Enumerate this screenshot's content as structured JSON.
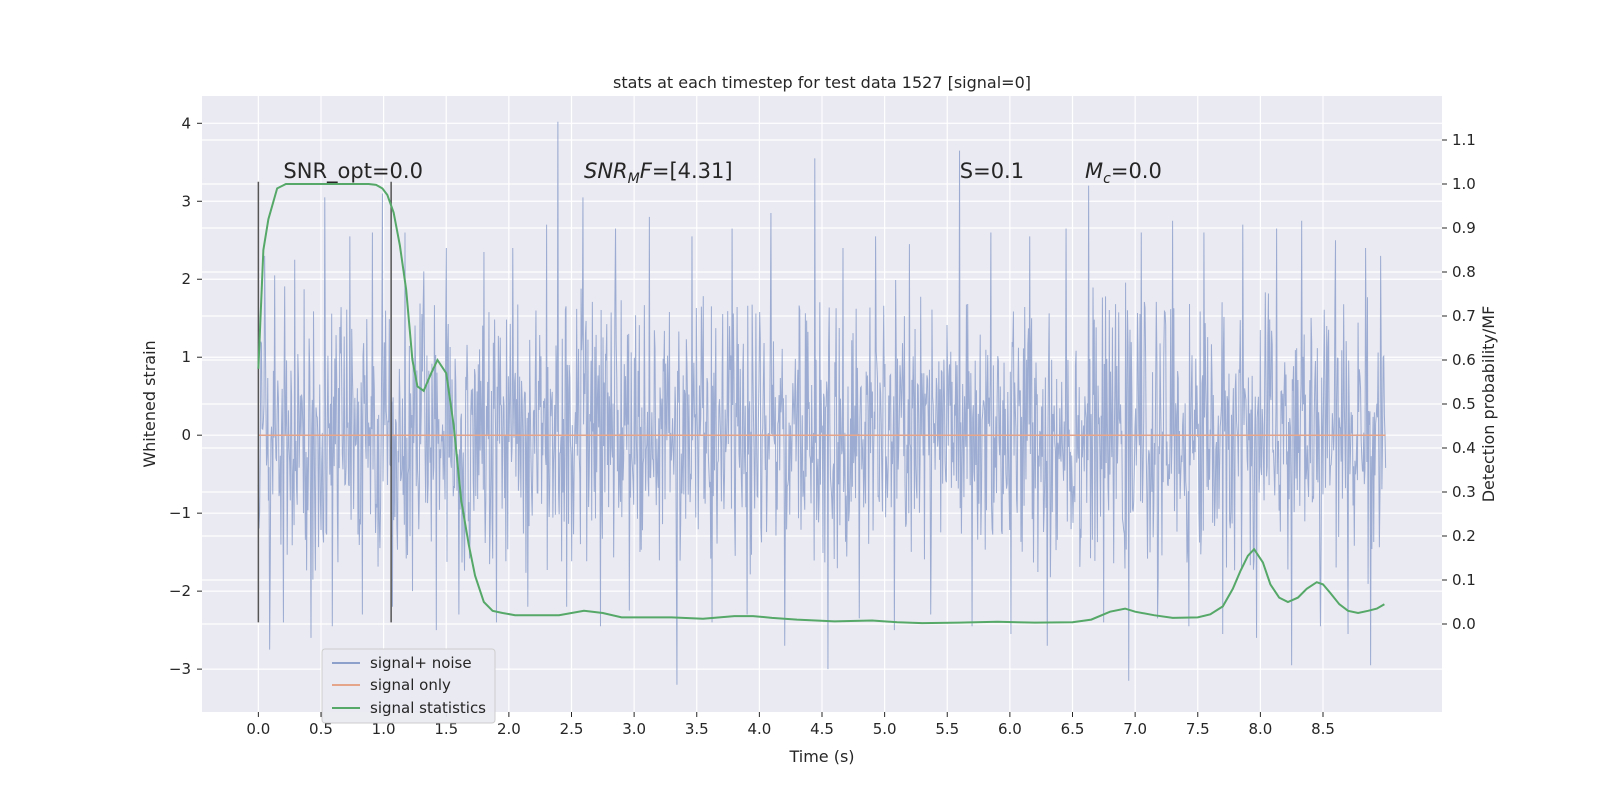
{
  "chart_data": {
    "type": "line",
    "title": "stats at each timestep for test data 1527 [signal=0]",
    "xlabel": "Time (s)",
    "ylabel": "Whitened strain",
    "y2label": "Detection probability/MF",
    "xlim": [
      -0.45,
      9.45
    ],
    "ylim": [
      -3.55,
      4.35
    ],
    "y2lim": [
      -0.2,
      1.2
    ],
    "x_ticks": [
      0.0,
      0.5,
      1.0,
      1.5,
      2.0,
      2.5,
      3.0,
      3.5,
      4.0,
      4.5,
      5.0,
      5.5,
      6.0,
      6.5,
      7.0,
      7.5,
      8.0,
      8.5
    ],
    "x_tick_labels": [
      "0.0",
      "0.5",
      "1.0",
      "1.5",
      "2.0",
      "2.5",
      "3.0",
      "3.5",
      "4.0",
      "4.5",
      "5.0",
      "5.5",
      "6.0",
      "6.5",
      "7.0",
      "7.5",
      "8.0",
      "8.5"
    ],
    "y_ticks": [
      -3,
      -2,
      -1,
      0,
      1,
      2,
      3,
      4
    ],
    "y_tick_labels": [
      "−3",
      "−2",
      "−1",
      "0",
      "1",
      "2",
      "3",
      "4"
    ],
    "y2_ticks": [
      0.0,
      0.1,
      0.2,
      0.3,
      0.4,
      0.5,
      0.6,
      0.7,
      0.8,
      0.9,
      1.0,
      1.1
    ],
    "y2_tick_labels": [
      "0.0",
      "0.1",
      "0.2",
      "0.3",
      "0.4",
      "0.5",
      "0.6",
      "0.7",
      "0.8",
      "0.9",
      "1.0",
      "1.1"
    ],
    "grid": true,
    "legend_position": "lower-left",
    "annotations": [
      {
        "text": "SNR_opt=0.0",
        "x": 0.2,
        "y": 3.3
      },
      {
        "text": "SNR_MF=[4.31]",
        "x": 2.6,
        "y": 3.3
      },
      {
        "text": "S=0.1",
        "x": 5.6,
        "y": 3.3
      },
      {
        "text": "M_c=0.0",
        "x": 6.6,
        "y": 3.3
      }
    ],
    "vertical_lines": [
      {
        "x": 0.0,
        "y_range": [
          -2.4,
          3.25
        ]
      },
      {
        "x": 1.06,
        "y_range": [
          -2.4,
          3.25
        ]
      }
    ],
    "series": [
      {
        "name": "signal+ noise",
        "color": "#8da0cb",
        "axis": "left",
        "x_range": [
          0.0,
          9.0
        ],
        "samples": 1800,
        "envelope": {
          "typical_abs": 1.55,
          "peak_max": 4.02,
          "peak_min": -3.2
        },
        "spikes": [
          [
            0.05,
            2.3
          ],
          [
            0.09,
            -2.75
          ],
          [
            0.13,
            2.05
          ],
          [
            0.2,
            -2.4
          ],
          [
            0.29,
            2.25
          ],
          [
            0.42,
            -2.6
          ],
          [
            0.53,
            3.05
          ],
          [
            0.59,
            -2.45
          ],
          [
            0.73,
            2.55
          ],
          [
            0.83,
            -2.3
          ],
          [
            0.91,
            2.6
          ],
          [
            0.99,
            3.1
          ],
          [
            1.07,
            -2.2
          ],
          [
            1.17,
            2.6
          ],
          [
            1.23,
            -2.0
          ],
          [
            1.32,
            2.1
          ],
          [
            1.42,
            -2.5
          ],
          [
            1.5,
            2.4
          ],
          [
            1.6,
            -2.3
          ],
          [
            1.8,
            2.35
          ],
          [
            1.9,
            -2.4
          ],
          [
            2.03,
            2.4
          ],
          [
            2.15,
            -2.2
          ],
          [
            2.3,
            2.7
          ],
          [
            2.39,
            4.02
          ],
          [
            2.46,
            -2.2
          ],
          [
            2.59,
            3.05
          ],
          [
            2.73,
            -2.45
          ],
          [
            2.85,
            2.65
          ],
          [
            2.96,
            -2.25
          ],
          [
            3.12,
            2.8
          ],
          [
            3.34,
            -3.2
          ],
          [
            3.46,
            2.55
          ],
          [
            3.62,
            -2.4
          ],
          [
            3.78,
            2.65
          ],
          [
            3.9,
            -2.3
          ],
          [
            4.09,
            2.85
          ],
          [
            4.2,
            -2.7
          ],
          [
            4.44,
            3.55
          ],
          [
            4.55,
            -3.0
          ],
          [
            4.67,
            2.4
          ],
          [
            4.8,
            -2.35
          ],
          [
            4.93,
            2.55
          ],
          [
            5.08,
            -2.5
          ],
          [
            5.2,
            2.45
          ],
          [
            5.37,
            -2.3
          ],
          [
            5.6,
            3.65
          ],
          [
            5.7,
            -2.45
          ],
          [
            5.85,
            2.6
          ],
          [
            6.01,
            -2.55
          ],
          [
            6.16,
            2.55
          ],
          [
            6.3,
            -2.7
          ],
          [
            6.45,
            2.65
          ],
          [
            6.63,
            3.2
          ],
          [
            6.75,
            -2.4
          ],
          [
            6.95,
            -3.15
          ],
          [
            7.05,
            2.6
          ],
          [
            7.18,
            -2.35
          ],
          [
            7.3,
            2.75
          ],
          [
            7.43,
            -2.45
          ],
          [
            7.55,
            2.6
          ],
          [
            7.7,
            -2.55
          ],
          [
            7.86,
            2.7
          ],
          [
            7.97,
            -2.6
          ],
          [
            8.13,
            2.65
          ],
          [
            8.25,
            -2.95
          ],
          [
            8.33,
            2.75
          ],
          [
            8.48,
            -2.45
          ],
          [
            8.6,
            2.5
          ],
          [
            8.7,
            -2.55
          ],
          [
            8.84,
            2.4
          ],
          [
            8.88,
            -2.95
          ],
          [
            8.96,
            2.3
          ]
        ]
      },
      {
        "name": "signal only",
        "color": "#e5a58b",
        "axis": "left",
        "x": [
          0.0,
          9.0
        ],
        "y": [
          0.0,
          0.0
        ]
      },
      {
        "name": "signal statistics",
        "color": "#55a868",
        "axis": "right",
        "x": [
          0.0,
          0.04,
          0.08,
          0.15,
          0.22,
          0.3,
          0.4,
          0.5,
          0.6,
          0.7,
          0.8,
          0.88,
          0.94,
          0.99,
          1.03,
          1.08,
          1.13,
          1.18,
          1.23,
          1.27,
          1.32,
          1.38,
          1.43,
          1.5,
          1.56,
          1.62,
          1.68,
          1.73,
          1.8,
          1.87,
          1.95,
          2.05,
          2.2,
          2.4,
          2.6,
          2.75,
          2.9,
          3.1,
          3.3,
          3.55,
          3.8,
          3.95,
          4.1,
          4.3,
          4.6,
          4.9,
          5.1,
          5.3,
          5.6,
          5.9,
          6.2,
          6.5,
          6.65,
          6.8,
          6.92,
          7.0,
          7.15,
          7.3,
          7.5,
          7.6,
          7.7,
          7.78,
          7.84,
          7.9,
          7.95,
          8.02,
          8.08,
          8.15,
          8.22,
          8.3,
          8.37,
          8.45,
          8.5,
          8.56,
          8.63,
          8.7,
          8.78,
          8.86,
          8.93,
          8.99
        ],
        "y": [
          0.58,
          0.85,
          0.92,
          0.99,
          1.0,
          1.0,
          1.0,
          1.0,
          1.0,
          1.0,
          1.0,
          1.0,
          0.998,
          0.99,
          0.975,
          0.935,
          0.86,
          0.76,
          0.6,
          0.54,
          0.53,
          0.57,
          0.6,
          0.57,
          0.45,
          0.28,
          0.18,
          0.11,
          0.05,
          0.03,
          0.025,
          0.02,
          0.02,
          0.02,
          0.03,
          0.025,
          0.015,
          0.015,
          0.015,
          0.012,
          0.018,
          0.018,
          0.014,
          0.01,
          0.006,
          0.008,
          0.004,
          0.002,
          0.003,
          0.005,
          0.003,
          0.004,
          0.01,
          0.028,
          0.035,
          0.028,
          0.02,
          0.014,
          0.015,
          0.022,
          0.04,
          0.08,
          0.12,
          0.155,
          0.17,
          0.14,
          0.09,
          0.06,
          0.05,
          0.06,
          0.08,
          0.095,
          0.09,
          0.07,
          0.045,
          0.03,
          0.025,
          0.03,
          0.035,
          0.045
        ]
      }
    ]
  }
}
